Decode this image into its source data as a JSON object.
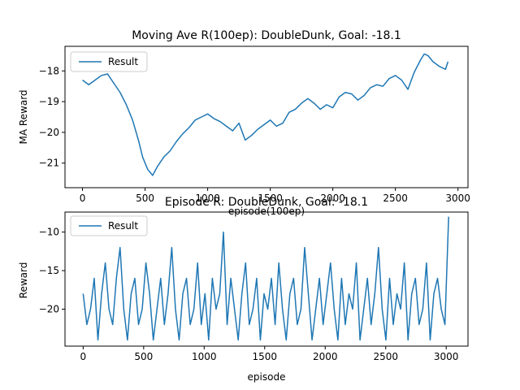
{
  "figure": {
    "background": "#ffffff",
    "line_color": "#1f77b4"
  },
  "chart_data": [
    {
      "type": "line",
      "title": "Moving Ave R(100ep): DoubleDunk, Goal: -18.1",
      "xlabel": "episode(100ep)",
      "ylabel": "MA Reward",
      "xlim": [
        -140,
        3080
      ],
      "ylim": [
        -21.8,
        -17.2
      ],
      "xticks": [
        0,
        500,
        1000,
        1500,
        2000,
        2500,
        3000
      ],
      "yticks": [
        -21,
        -20,
        -19,
        -18
      ],
      "xtick_labels": [
        "0",
        "500",
        "1000",
        "1500",
        "2000",
        "2500",
        "3000"
      ],
      "ytick_labels": [
        "−21",
        "−20",
        "−19",
        "−18"
      ],
      "grid": false,
      "legend": {
        "position": "upper-left",
        "entries": [
          "Result"
        ]
      },
      "series": [
        {
          "name": "Result",
          "color": "#1f77b4",
          "x": [
            0,
            50,
            100,
            150,
            200,
            250,
            300,
            350,
            400,
            450,
            480,
            520,
            560,
            600,
            650,
            700,
            750,
            800,
            850,
            900,
            950,
            1000,
            1050,
            1100,
            1150,
            1200,
            1250,
            1300,
            1350,
            1400,
            1450,
            1500,
            1550,
            1600,
            1650,
            1700,
            1750,
            1800,
            1850,
            1900,
            1950,
            2000,
            2050,
            2100,
            2150,
            2200,
            2250,
            2300,
            2350,
            2400,
            2450,
            2500,
            2550,
            2600,
            2650,
            2700,
            2730,
            2760,
            2800,
            2850,
            2900,
            2920
          ],
          "y": [
            -18.3,
            -18.45,
            -18.3,
            -18.15,
            -18.1,
            -18.4,
            -18.7,
            -19.1,
            -19.6,
            -20.3,
            -20.8,
            -21.2,
            -21.4,
            -21.1,
            -20.8,
            -20.6,
            -20.3,
            -20.05,
            -19.85,
            -19.6,
            -19.5,
            -19.4,
            -19.55,
            -19.65,
            -19.8,
            -19.95,
            -19.7,
            -20.25,
            -20.1,
            -19.9,
            -19.75,
            -19.6,
            -19.8,
            -19.7,
            -19.35,
            -19.25,
            -19.05,
            -18.9,
            -19.05,
            -19.25,
            -19.1,
            -19.2,
            -18.85,
            -18.7,
            -18.75,
            -18.95,
            -18.8,
            -18.55,
            -18.45,
            -18.5,
            -18.25,
            -18.15,
            -18.3,
            -18.6,
            -18.05,
            -17.65,
            -17.45,
            -17.5,
            -17.7,
            -17.85,
            -17.95,
            -17.7
          ]
        }
      ]
    },
    {
      "type": "line",
      "title": "Episode R: DoubleDunk, Goal: -18.1",
      "xlabel": "episode",
      "ylabel": "Reward",
      "xlim": [
        -150,
        3180
      ],
      "ylim": [
        -24.8,
        -7.4
      ],
      "xticks": [
        0,
        500,
        1000,
        1500,
        2000,
        2500,
        3000
      ],
      "yticks": [
        -20,
        -15,
        -10
      ],
      "xtick_labels": [
        "0",
        "500",
        "1000",
        "1500",
        "2000",
        "2500",
        "3000"
      ],
      "ytick_labels": [
        "−20",
        "−15",
        "−10"
      ],
      "grid": false,
      "legend": {
        "position": "upper-left",
        "entries": [
          "Result"
        ]
      },
      "series": [
        {
          "name": "Result",
          "color": "#1f77b4",
          "x_start": 0,
          "x_end": 3020,
          "values": [
            -18,
            -22,
            -20,
            -16,
            -24,
            -18,
            -14,
            -20,
            -22,
            -16,
            -12,
            -20,
            -24,
            -18,
            -16,
            -22,
            -20,
            -14,
            -18,
            -24,
            -20,
            -16,
            -22,
            -18,
            -12,
            -20,
            -24,
            -18,
            -16,
            -22,
            -20,
            -14,
            -22,
            -18,
            -24,
            -16,
            -20,
            -18,
            -10,
            -22,
            -16,
            -20,
            -24,
            -18,
            -14,
            -22,
            -20,
            -16,
            -24,
            -18,
            -20,
            -16,
            -22,
            -14,
            -20,
            -24,
            -18,
            -16,
            -22,
            -20,
            -12,
            -18,
            -24,
            -20,
            -16,
            -22,
            -18,
            -14,
            -20,
            -24,
            -16,
            -22,
            -18,
            -20,
            -14,
            -24,
            -20,
            -16,
            -22,
            -18,
            -12,
            -20,
            -24,
            -16,
            -22,
            -18,
            -20,
            -14,
            -24,
            -18,
            -16,
            -22,
            -20,
            -14,
            -24,
            -18,
            -16,
            -20,
            -22,
            -8
          ]
        }
      ]
    }
  ]
}
